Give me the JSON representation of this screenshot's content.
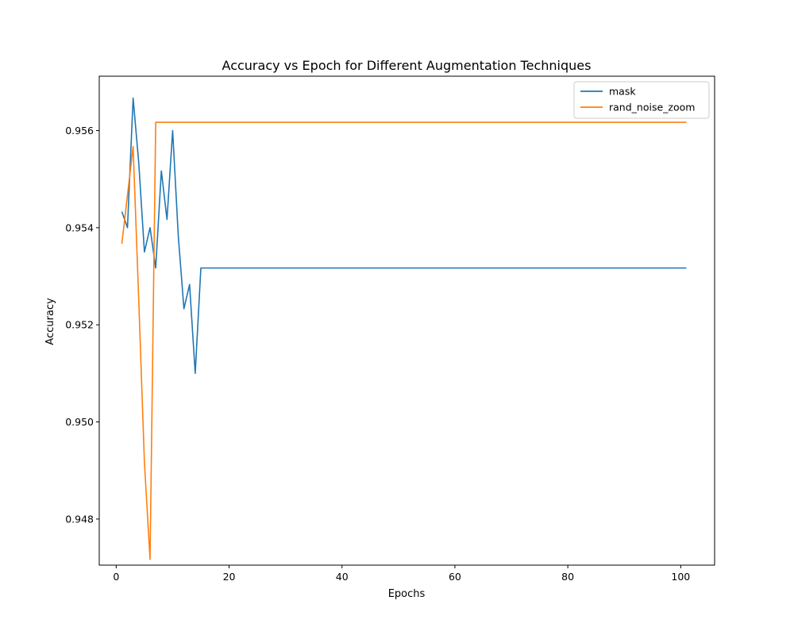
{
  "chart_data": {
    "type": "line",
    "title": "Accuracy vs Epoch for Different Augmentation Techniques",
    "xlabel": "Epochs",
    "ylabel": "Accuracy",
    "xlim": [
      -3,
      106
    ],
    "ylim": [
      0.94705,
      0.95712
    ],
    "xticks": [
      0,
      20,
      40,
      60,
      80,
      100
    ],
    "xtick_labels": [
      "0",
      "20",
      "40",
      "60",
      "80",
      "100"
    ],
    "yticks": [
      0.948,
      0.95,
      0.952,
      0.954,
      0.956
    ],
    "ytick_labels": [
      "0.948",
      "0.950",
      "0.952",
      "0.954",
      "0.956"
    ],
    "grid": false,
    "legend_position": "upper-right",
    "series": [
      {
        "name": "mask",
        "color": "#1f77b4",
        "x": [
          1,
          2,
          3,
          4,
          5,
          6,
          7,
          8,
          9,
          10,
          11,
          12,
          13,
          14,
          15,
          101
        ],
        "y": [
          0.95433,
          0.954,
          0.95667,
          0.95533,
          0.9535,
          0.954,
          0.95317,
          0.95517,
          0.95417,
          0.956,
          0.95383,
          0.95233,
          0.95283,
          0.951,
          0.95317,
          0.95317
        ]
      },
      {
        "name": "rand_noise_zoom",
        "color": "#ff7f0e",
        "x": [
          1,
          2,
          3,
          4,
          5,
          6,
          7,
          101
        ],
        "y": [
          0.95367,
          0.95467,
          0.95567,
          0.9525,
          0.94917,
          0.94717,
          0.95617,
          0.95617
        ]
      }
    ]
  }
}
